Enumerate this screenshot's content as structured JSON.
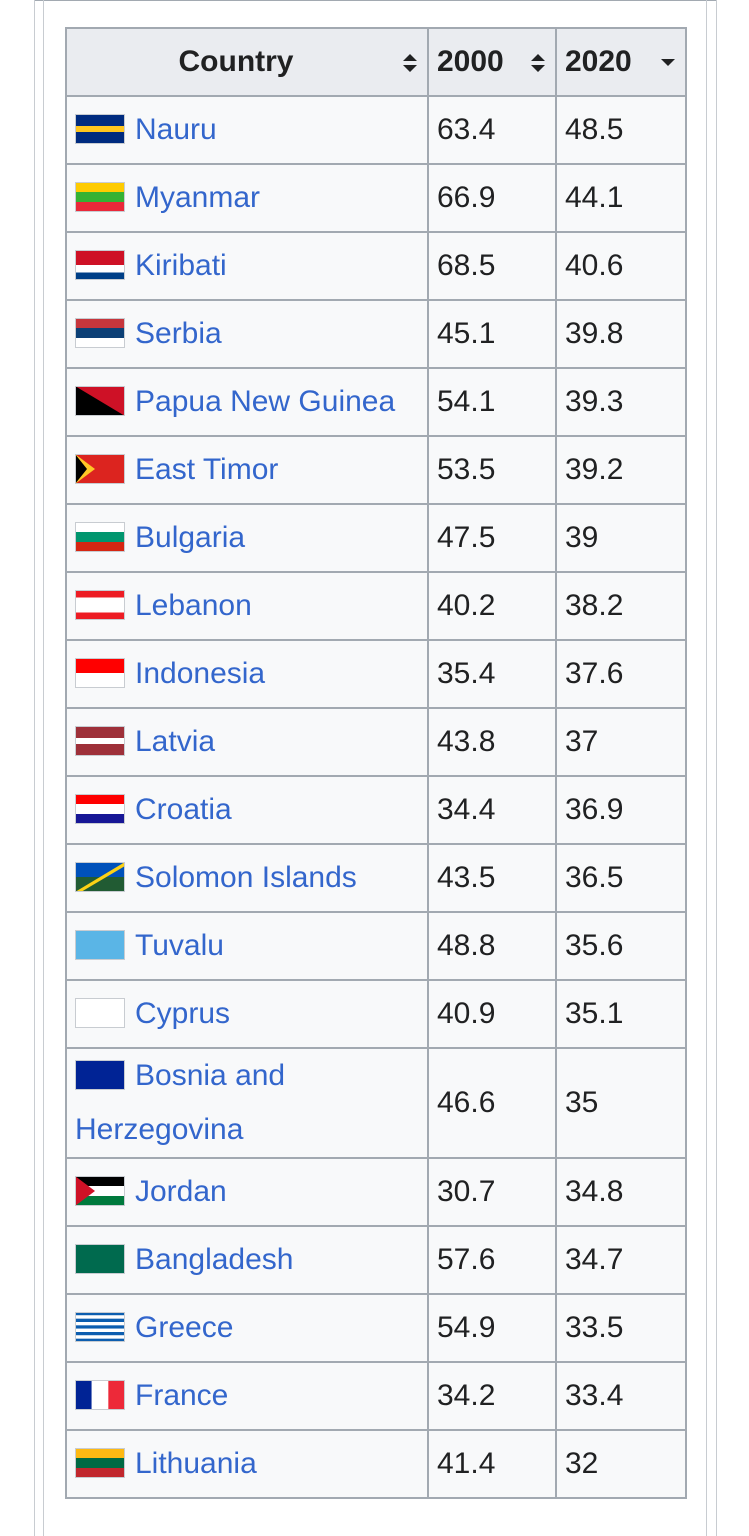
{
  "table": {
    "header": [
      "Country",
      "2000",
      "2020"
    ],
    "rows": [
      [
        "Nauru",
        63.4,
        48.5
      ],
      [
        "Myanmar",
        66.9,
        44.1
      ],
      [
        "Kiribati",
        68.5,
        40.6
      ],
      [
        "Serbia",
        45.1,
        39.8
      ],
      [
        "Papua New Guinea",
        54.1,
        39.3
      ],
      [
        "East Timor",
        53.5,
        39.2
      ],
      [
        "Bulgaria",
        47.5,
        39
      ],
      [
        "Lebanon",
        40.2,
        38.2
      ],
      [
        "Indonesia",
        35.4,
        37.6
      ],
      [
        "Latvia",
        43.8,
        37
      ],
      [
        "Croatia",
        34.4,
        36.9
      ],
      [
        "Solomon Islands",
        43.5,
        36.5
      ],
      [
        "Tuvalu",
        48.8,
        35.6
      ],
      [
        "Cyprus",
        40.9,
        35.1
      ],
      [
        "Bosnia and Herzegovina",
        46.6,
        35
      ],
      [
        "Jordan",
        30.7,
        34.8
      ],
      [
        "Bangladesh",
        57.6,
        34.7
      ],
      [
        "Greece",
        54.9,
        33.5
      ],
      [
        "France",
        34.2,
        33.4
      ],
      [
        "Lithuania",
        41.4,
        32
      ]
    ]
  }
}
